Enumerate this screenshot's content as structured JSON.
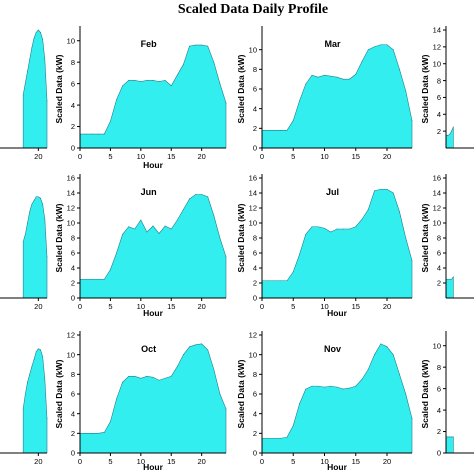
{
  "figure": {
    "title": "Scaled Data Daily Profile",
    "area_color": "#33eeee",
    "edge_color": "#1f7f8f"
  },
  "chart_data": [
    {
      "type": "area",
      "title": "",
      "xlabel": "",
      "ylabel": "",
      "xlim": [
        0,
        24
      ],
      "ylim": [
        0,
        10
      ],
      "xticks": [
        20
      ],
      "yticks": [],
      "x": [
        13,
        14,
        15,
        16,
        17,
        18,
        19,
        20,
        21,
        22,
        23,
        24
      ],
      "y": [
        4.5,
        5.5,
        6.5,
        7.5,
        8.5,
        9.3,
        9.8,
        10.0,
        9.8,
        9.2,
        7.5,
        4.0
      ]
    },
    {
      "type": "area",
      "title": "Feb",
      "xlabel": "Hour",
      "ylabel": "Scaled Data (kW)",
      "xlim": [
        0,
        24
      ],
      "ylim": [
        0,
        11
      ],
      "xticks": [
        0,
        5,
        10,
        15,
        20
      ],
      "yticks": [
        0,
        2,
        4,
        6,
        8,
        10
      ],
      "x": [
        0,
        1,
        2,
        3,
        4,
        5,
        6,
        7,
        8,
        9,
        10,
        11,
        12,
        13,
        14,
        15,
        16,
        17,
        18,
        19,
        20,
        21,
        22,
        23,
        24
      ],
      "y": [
        1.3,
        1.3,
        1.3,
        1.3,
        1.3,
        2.5,
        4.5,
        5.8,
        6.3,
        6.3,
        6.2,
        6.3,
        6.3,
        6.2,
        6.3,
        5.8,
        6.8,
        7.8,
        9.5,
        9.6,
        9.6,
        9.5,
        8.0,
        6.0,
        4.2
      ]
    },
    {
      "type": "area",
      "title": "Mar",
      "xlabel": "",
      "ylabel": "Scaled Data (kW)",
      "xlim": [
        0,
        24
      ],
      "ylim": [
        0,
        12
      ],
      "xticks": [
        0,
        5,
        10,
        15,
        20
      ],
      "yticks": [
        0,
        2,
        4,
        6,
        8,
        10
      ],
      "x": [
        0,
        1,
        2,
        3,
        4,
        5,
        6,
        7,
        8,
        9,
        10,
        11,
        12,
        13,
        14,
        15,
        16,
        17,
        18,
        19,
        20,
        21,
        22,
        23,
        24
      ],
      "y": [
        1.8,
        1.8,
        1.8,
        1.8,
        1.8,
        2.8,
        4.8,
        6.5,
        7.4,
        7.2,
        7.4,
        7.3,
        7.2,
        7.0,
        7.0,
        7.5,
        8.8,
        10.0,
        10.3,
        10.5,
        10.5,
        10.0,
        8.0,
        5.8,
        2.8
      ]
    },
    {
      "type": "area",
      "title": "",
      "xlabel": "",
      "ylabel": "Scaled Data (kW)",
      "xlim": [
        0,
        24
      ],
      "ylim": [
        0,
        14
      ],
      "xticks": [],
      "yticks": [
        2,
        4,
        6,
        8,
        10,
        12,
        14
      ],
      "x": [
        0,
        1,
        2,
        3,
        4
      ],
      "y": [
        1.5,
        1.5,
        1.6,
        2.0,
        2.5
      ]
    },
    {
      "type": "area",
      "title": "",
      "xlabel": "",
      "ylabel": "",
      "xlim": [
        0,
        24
      ],
      "ylim": [
        0,
        16
      ],
      "xticks": [
        20
      ],
      "yticks": [],
      "x": [
        13,
        14,
        15,
        16,
        17,
        18,
        19,
        20,
        21,
        22,
        23,
        24
      ],
      "y": [
        7.5,
        8.5,
        10.0,
        11.5,
        12.5,
        13.0,
        13.5,
        13.5,
        13.3,
        12.5,
        10.5,
        5.5
      ]
    },
    {
      "type": "area",
      "title": "Jun",
      "xlabel": "Hour",
      "ylabel": "Scaled Data (kW)",
      "xlim": [
        0,
        24
      ],
      "ylim": [
        0,
        16
      ],
      "xticks": [
        0,
        5,
        10,
        15,
        20
      ],
      "yticks": [
        0,
        2,
        4,
        6,
        8,
        10,
        12,
        14,
        16
      ],
      "x": [
        0,
        1,
        2,
        3,
        4,
        5,
        6,
        7,
        8,
        9,
        10,
        11,
        12,
        13,
        14,
        15,
        16,
        17,
        18,
        19,
        20,
        21,
        22,
        23,
        24
      ],
      "y": [
        2.5,
        2.5,
        2.5,
        2.5,
        2.5,
        3.8,
        6.0,
        8.5,
        9.5,
        9.2,
        10.4,
        8.8,
        9.6,
        8.6,
        9.6,
        9.2,
        10.4,
        11.8,
        13.2,
        13.8,
        13.8,
        13.5,
        11.0,
        8.0,
        5.5
      ]
    },
    {
      "type": "area",
      "title": "Jul",
      "xlabel": "Hour",
      "ylabel": "Scaled Data (kW)",
      "xlim": [
        0,
        24
      ],
      "ylim": [
        0,
        16
      ],
      "xticks": [
        0,
        5,
        10,
        15,
        20
      ],
      "yticks": [
        0,
        2,
        4,
        6,
        8,
        10,
        12,
        14,
        16
      ],
      "x": [
        0,
        1,
        2,
        3,
        4,
        5,
        6,
        7,
        8,
        9,
        10,
        11,
        12,
        13,
        14,
        15,
        16,
        17,
        18,
        19,
        20,
        21,
        22,
        23,
        24
      ],
      "y": [
        2.3,
        2.3,
        2.3,
        2.3,
        2.3,
        3.5,
        5.8,
        8.5,
        9.5,
        9.5,
        9.3,
        8.8,
        9.2,
        9.2,
        9.2,
        9.5,
        10.5,
        11.8,
        14.3,
        14.5,
        14.5,
        14.0,
        11.5,
        8.0,
        5.0
      ]
    },
    {
      "type": "area",
      "title": "",
      "xlabel": "",
      "ylabel": "Scaled Data (kW)",
      "xlim": [
        0,
        24
      ],
      "ylim": [
        0,
        16
      ],
      "xticks": [],
      "yticks": [
        2,
        4,
        6,
        8,
        10,
        12,
        14,
        16
      ],
      "x": [
        0,
        1,
        2,
        3,
        4
      ],
      "y": [
        2.5,
        2.5,
        2.5,
        2.5,
        2.8
      ]
    },
    {
      "type": "area",
      "title": "",
      "xlabel": "",
      "ylabel": "",
      "xlim": [
        0,
        24
      ],
      "ylim": [
        0,
        12
      ],
      "xticks": [
        20
      ],
      "yticks": [],
      "x": [
        13,
        14,
        15,
        16,
        17,
        18,
        19,
        20,
        21,
        22,
        23,
        24
      ],
      "y": [
        4.5,
        6.0,
        7.2,
        8.0,
        8.8,
        9.5,
        10.3,
        10.6,
        10.5,
        9.8,
        7.5,
        3.5
      ]
    },
    {
      "type": "area",
      "title": "Oct",
      "xlabel": "Hour",
      "ylabel": "Scaled Data (kW)",
      "xlim": [
        0,
        24
      ],
      "ylim": [
        0,
        12
      ],
      "xticks": [
        0,
        5,
        10,
        15,
        20
      ],
      "yticks": [
        0,
        2,
        4,
        6,
        8,
        10,
        12
      ],
      "x": [
        0,
        1,
        2,
        3,
        4,
        5,
        6,
        7,
        8,
        9,
        10,
        11,
        12,
        13,
        14,
        15,
        16,
        17,
        18,
        19,
        20,
        21,
        22,
        23,
        24
      ],
      "y": [
        2.0,
        2.0,
        2.0,
        2.0,
        2.1,
        3.2,
        5.5,
        7.2,
        7.8,
        7.8,
        7.6,
        7.8,
        7.7,
        7.4,
        7.6,
        7.8,
        8.8,
        10.0,
        10.8,
        11.0,
        11.1,
        10.5,
        8.5,
        6.0,
        4.5
      ]
    },
    {
      "type": "area",
      "title": "Nov",
      "xlabel": "Hour",
      "ylabel": "Scaled Data (kW)",
      "xlim": [
        0,
        24
      ],
      "ylim": [
        0,
        12
      ],
      "xticks": [
        0,
        5,
        10,
        15,
        20
      ],
      "yticks": [
        0,
        2,
        4,
        6,
        8,
        10,
        12
      ],
      "x": [
        0,
        1,
        2,
        3,
        4,
        5,
        6,
        7,
        8,
        9,
        10,
        11,
        12,
        13,
        14,
        15,
        16,
        17,
        18,
        19,
        20,
        21,
        22,
        23,
        24
      ],
      "y": [
        1.5,
        1.5,
        1.5,
        1.5,
        1.6,
        2.8,
        5.0,
        6.5,
        6.8,
        6.8,
        6.7,
        6.8,
        6.7,
        6.5,
        6.6,
        6.8,
        7.5,
        8.5,
        10.0,
        11.1,
        10.8,
        10.0,
        8.0,
        6.0,
        3.5
      ]
    },
    {
      "type": "area",
      "title": "",
      "xlabel": "",
      "ylabel": "Scaled Data (kW)",
      "xlim": [
        0,
        24
      ],
      "ylim": [
        0,
        11
      ],
      "xticks": [],
      "yticks": [
        0,
        2,
        4,
        6,
        8,
        10
      ],
      "x": [
        0,
        1,
        2,
        3,
        4
      ],
      "y": [
        1.5,
        1.5,
        1.5,
        1.5,
        1.5
      ]
    }
  ]
}
